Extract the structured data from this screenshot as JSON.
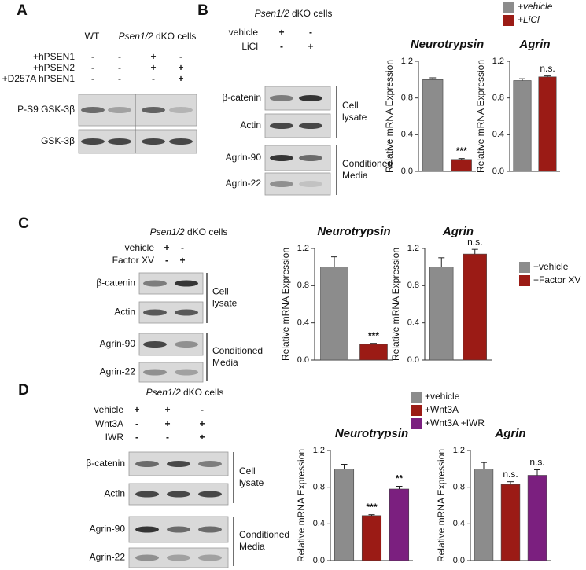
{
  "panels": {
    "A": {
      "label": "A",
      "header": "WT",
      "cells": {
        "italic": "Psen1/2",
        "plain": "dKO cells"
      },
      "treatments": [
        {
          "label": "+hPSEN1",
          "signs": [
            "-",
            "-",
            "+",
            "-"
          ]
        },
        {
          "label": "+hPSEN2",
          "signs": [
            "-",
            "-",
            "+",
            "+"
          ]
        },
        {
          "label": "+D257A hPSEN1",
          "signs": [
            "-",
            "-",
            "-",
            "+"
          ]
        }
      ],
      "blots": [
        "P-S9 GSK-3β",
        "GSK-3β"
      ]
    },
    "B": {
      "label": "B",
      "cells": {
        "italic": "Psen1/2",
        "plain": "dKO cells"
      },
      "treatments": [
        {
          "label": "vehicle",
          "signs": [
            "+",
            "-"
          ]
        },
        {
          "label": "LiCl",
          "signs": [
            "-",
            "+"
          ]
        }
      ],
      "blots": [
        "β-catenin",
        "Actin",
        "Agrin-90",
        "Agrin-22"
      ],
      "groups": [
        [
          "Cell",
          "lysate"
        ],
        [
          "Conditioned",
          "Media"
        ]
      ],
      "legend": [
        {
          "label": "+vehicle",
          "color": "#8c8c8c"
        },
        {
          "label": "+LiCl",
          "color": "#9b1b15"
        }
      ]
    },
    "C": {
      "label": "C",
      "cells": {
        "italic": "Psen1/2",
        "plain": "dKO cells"
      },
      "treatments": [
        {
          "label": "vehicle",
          "signs": [
            "+",
            "-"
          ]
        },
        {
          "label": "Factor XV",
          "signs": [
            "-",
            "+"
          ]
        }
      ],
      "blots": [
        "β-catenin",
        "Actin",
        "Agrin-90",
        "Agrin-22"
      ],
      "groups": [
        [
          "Cell",
          "lysate"
        ],
        [
          "Conditioned",
          "Media"
        ]
      ],
      "legend": [
        {
          "label": "+vehicle",
          "color": "#8c8c8c"
        },
        {
          "label": "+Factor XV",
          "color": "#9b1b15"
        }
      ]
    },
    "D": {
      "label": "D",
      "cells": {
        "italic": "Psen1/2",
        "plain": "dKO cells"
      },
      "treatments": [
        {
          "label": "vehicle",
          "signs": [
            "+",
            "+",
            "-"
          ]
        },
        {
          "label": "Wnt3A",
          "signs": [
            "-",
            "+",
            "+"
          ]
        },
        {
          "label": "IWR",
          "signs": [
            "-",
            "-",
            "+"
          ]
        }
      ],
      "blots": [
        "β-catenin",
        "Actin",
        "Agrin-90",
        "Agrin-22"
      ],
      "groups": [
        [
          "Cell",
          "lysate"
        ],
        [
          "Conditioned",
          "Media"
        ]
      ],
      "legend": [
        {
          "label": "+vehicle",
          "color": "#8c8c8c"
        },
        {
          "label": "+Wnt3A",
          "color": "#9b1b15"
        },
        {
          "label": "+Wnt3A +IWR",
          "color": "#7b1f7f"
        }
      ]
    }
  },
  "chart_data": [
    {
      "type": "bar",
      "title": "Neurotrypsin",
      "ylabel": "Relative mRNA Expression",
      "categories": [
        null,
        null
      ],
      "values": [
        1.0,
        0.13
      ],
      "errors": [
        0.02,
        0.01
      ],
      "colors": [
        "#8c8c8c",
        "#9b1b15"
      ],
      "annotations": [
        null,
        "***"
      ],
      "ylim": [
        0,
        1.2
      ],
      "yticks": [
        {
          "value": 0,
          "label": "0.0"
        },
        0.4,
        0.8,
        1.2
      ]
    },
    {
      "type": "bar",
      "title": "Agrin",
      "ylabel": "Relative mRNA Expression",
      "categories": [
        null,
        null
      ],
      "values": [
        0.99,
        1.03
      ],
      "errors": [
        0.02,
        0.01
      ],
      "colors": [
        "#8c8c8c",
        "#9b1b15"
      ],
      "annotations": [
        null,
        "n.s."
      ],
      "ylim": [
        0,
        1.2
      ],
      "yticks": [
        {
          "value": 0,
          "label": "0.0"
        },
        0.4,
        0.8,
        1.2
      ]
    },
    {
      "type": "bar",
      "title": "Neurotrypsin",
      "ylabel": "Relative mRNA Expression",
      "categories": [
        null,
        null
      ],
      "values": [
        1.0,
        0.17
      ],
      "errors": [
        0.11,
        0.01
      ],
      "colors": [
        "#8c8c8c",
        "#9b1b15"
      ],
      "annotations": [
        null,
        "***"
      ],
      "ylim": [
        0,
        1.2
      ],
      "yticks": [
        {
          "value": 0,
          "label": "0.0"
        },
        0.4,
        0.8,
        1.2
      ]
    },
    {
      "type": "bar",
      "title": "Agrin",
      "ylabel": "Relative mRNA Expression",
      "categories": [
        null,
        null
      ],
      "values": [
        1.0,
        1.14
      ],
      "errors": [
        0.1,
        0.05
      ],
      "colors": [
        "#8c8c8c",
        "#9b1b15"
      ],
      "annotations": [
        null,
        "n.s."
      ],
      "ylim": [
        0,
        1.2
      ],
      "yticks": [
        {
          "value": 0,
          "label": "0.0"
        },
        0.4,
        0.8,
        1.2
      ]
    },
    {
      "type": "bar",
      "title": "Neurotrypsin",
      "ylabel": "Relative mRNA Expression",
      "categories": [
        null,
        null,
        null
      ],
      "values": [
        1.0,
        0.49,
        0.78
      ],
      "errors": [
        0.05,
        0.01,
        0.03
      ],
      "colors": [
        "#8c8c8c",
        "#9b1b15",
        "#7b1f7f"
      ],
      "annotations": [
        null,
        "***",
        "**"
      ],
      "ylim": [
        0,
        1.2
      ],
      "yticks": [
        {
          "value": 0,
          "label": "0.0"
        },
        0.4,
        0.8,
        1.2
      ]
    },
    {
      "type": "bar",
      "title": "Agrin",
      "ylabel": "Relative mRNA Expression",
      "categories": [
        null,
        null,
        null
      ],
      "values": [
        1.0,
        0.83,
        0.93
      ],
      "errors": [
        0.07,
        0.03,
        0.06
      ],
      "colors": [
        "#8c8c8c",
        "#9b1b15",
        "#7b1f7f"
      ],
      "annotations": [
        null,
        "n.s.",
        "n.s."
      ],
      "ylim": [
        0,
        1.2
      ],
      "yticks": [
        {
          "value": 0,
          "label": "0.0"
        },
        0.4,
        0.8,
        1.2
      ]
    }
  ]
}
